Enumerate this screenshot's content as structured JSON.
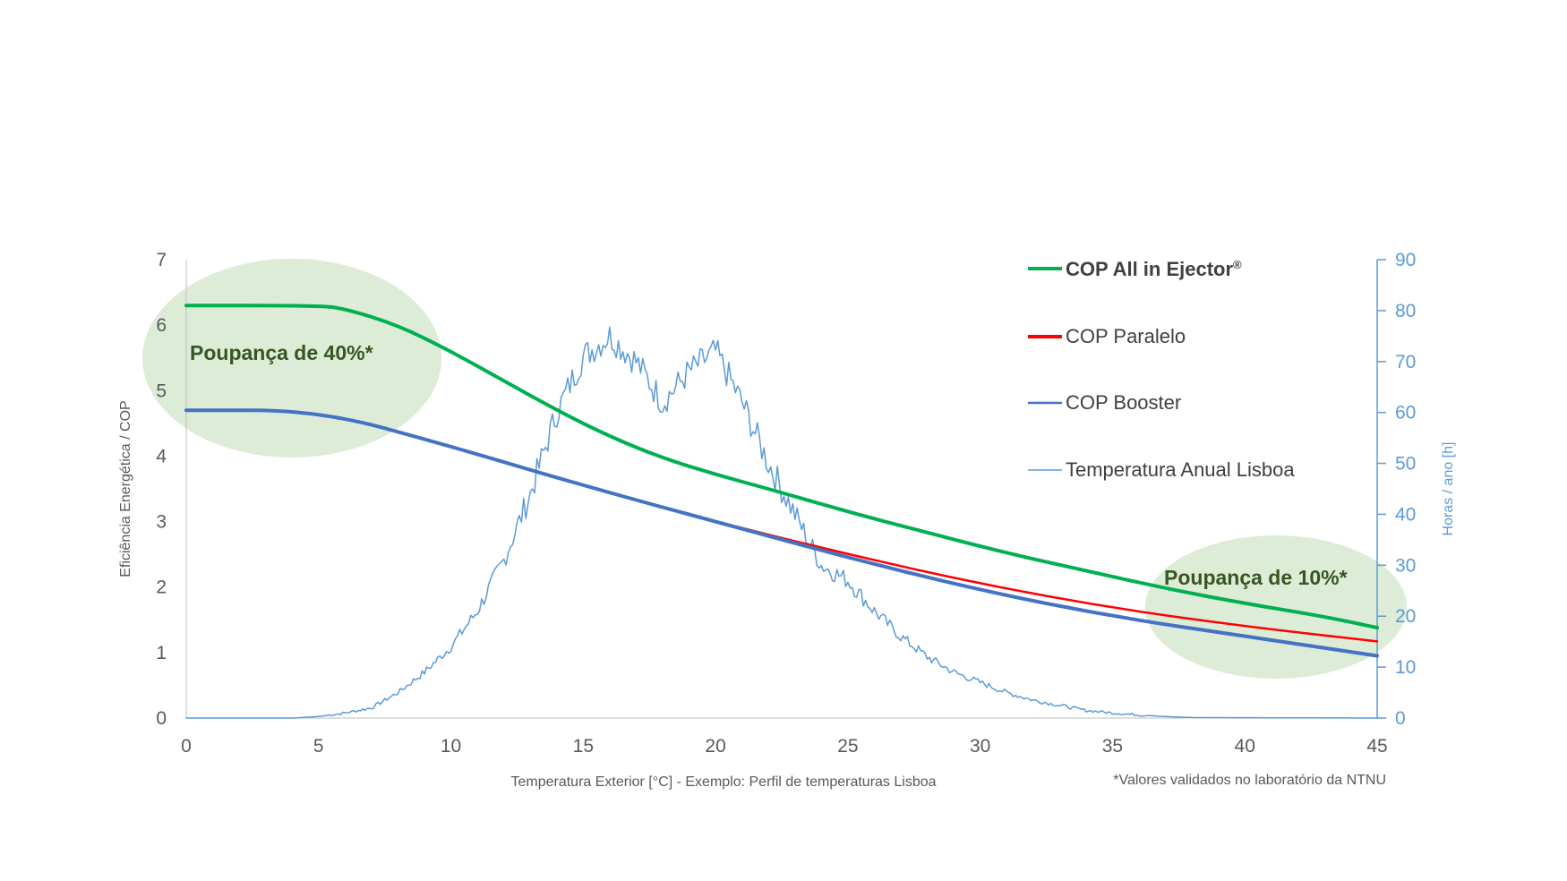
{
  "chart_data": {
    "type": "line",
    "xlabel": "Temperatura Exterior [°C] - Exemplo: Perfil de temperaturas Lisboa",
    "ylabel": "Eficiência Energética / COP",
    "y2label": "Horas / ano [h]",
    "xlim": [
      0,
      45
    ],
    "ylim": [
      0,
      7
    ],
    "y2lim": [
      0,
      90
    ],
    "x_ticks": [
      "0",
      "5",
      "10",
      "15",
      "20",
      "25",
      "30",
      "35",
      "40",
      "45"
    ],
    "y_ticks": [
      "0",
      "1",
      "2",
      "3",
      "4",
      "5",
      "6",
      "7"
    ],
    "y2_ticks": [
      "0",
      "10",
      "20",
      "30",
      "40",
      "50",
      "60",
      "70",
      "80",
      "90"
    ],
    "legend_position": "top-right",
    "grid": false,
    "series": [
      {
        "name": "COP All in Ejector",
        "name_suffix": "®",
        "axis": "left",
        "color": "#00b050",
        "bold_label": true,
        "x": [
          0,
          5,
          6,
          8,
          10,
          12,
          14,
          16,
          18,
          20,
          22,
          25,
          28,
          31,
          34,
          37,
          40,
          43,
          45
        ],
        "y": [
          6.3,
          6.3,
          6.25,
          6.0,
          5.6,
          5.15,
          4.7,
          4.3,
          3.97,
          3.72,
          3.5,
          3.15,
          2.83,
          2.52,
          2.25,
          1.98,
          1.75,
          1.55,
          1.38
        ]
      },
      {
        "name": "COP Paralelo",
        "axis": "left",
        "color": "#ff0000",
        "x": [
          0,
          5,
          10,
          15,
          20,
          25,
          30,
          35,
          40,
          45
        ],
        "y": [
          4.7,
          4.7,
          4.15,
          3.55,
          3.0,
          2.5,
          2.05,
          1.68,
          1.4,
          1.17
        ]
      },
      {
        "name": "COP Booster",
        "axis": "left",
        "color": "#4472c4",
        "x": [
          0,
          5,
          10,
          15,
          20,
          25,
          30,
          35,
          40,
          45
        ],
        "y": [
          4.7,
          4.7,
          4.15,
          3.55,
          3.0,
          2.45,
          1.95,
          1.55,
          1.25,
          0.95
        ]
      },
      {
        "name": "Temperatura Anual Lisboa",
        "axis": "right",
        "color": "#5b9bd5",
        "x": [
          0,
          4,
          5,
          6,
          7,
          8,
          9,
          10,
          11,
          12,
          13,
          14,
          15,
          16,
          17,
          18,
          19,
          20,
          21,
          22,
          23,
          24,
          25,
          26,
          27,
          28,
          29,
          30,
          31,
          32,
          33,
          34,
          35,
          36,
          37,
          38,
          45
        ],
        "y": [
          0,
          0,
          0.3,
          1,
          2,
          5,
          9,
          14,
          21,
          31,
          44,
          60,
          71,
          75,
          70,
          62,
          68,
          72,
          62,
          50,
          40,
          30,
          27,
          21,
          16,
          12,
          9,
          7,
          5,
          3.5,
          2.5,
          1.5,
          1,
          0.6,
          0.3,
          0.1,
          0
        ]
      }
    ],
    "annotations": [
      {
        "text": "Poupança  de 40%*",
        "near": "top-left"
      },
      {
        "text": "Poupança  de 10%*",
        "near": "bottom-right"
      }
    ],
    "footnote": "*Valores validados no laboratório da NTNU"
  },
  "colors": {
    "ellipse_fill": "#d9ead3",
    "axis_left": "#bfbfbf",
    "axis_right": "#5b9bd5"
  }
}
